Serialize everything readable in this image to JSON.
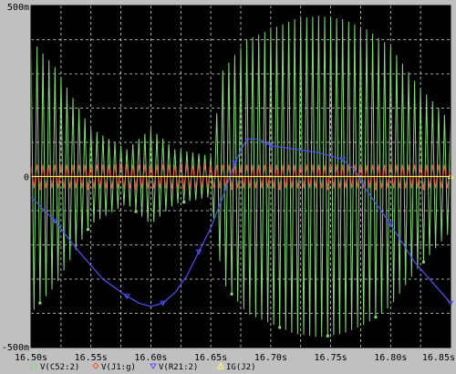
{
  "chart_data": {
    "type": "line",
    "xlim": [
      16.5,
      16.85
    ],
    "ylim": [
      -0.5,
      0.5
    ],
    "x_ticks": [
      16.5,
      16.55,
      16.6,
      16.65,
      16.7,
      16.75,
      16.8,
      16.85
    ],
    "x_tick_labels": [
      "16.50s",
      "16.55s",
      "16.60s",
      "16.65s",
      "16.70s",
      "16.75s",
      "16.80s",
      "16.85s"
    ],
    "y_ticks": [
      0.5,
      0,
      -0.5
    ],
    "y_tick_labels": [
      "500m",
      "0",
      "-500m"
    ],
    "grid": true,
    "legend_position": "bottom",
    "background": "#000000",
    "series": [
      {
        "name": "V(C52:2)",
        "color": "#7fdc6e",
        "marker": "square",
        "style": "carrier",
        "carrier_freq": 200,
        "envelope_x": [
          16.5,
          16.52,
          16.55,
          16.58,
          16.6,
          16.62,
          16.65,
          16.66,
          16.68,
          16.7,
          16.72,
          16.74,
          16.76,
          16.78,
          16.8,
          16.82,
          16.84,
          16.85
        ],
        "envelope": [
          0.4,
          0.32,
          0.14,
          0.08,
          0.14,
          0.08,
          0.06,
          0.31,
          0.4,
          0.43,
          0.46,
          0.47,
          0.46,
          0.43,
          0.38,
          0.28,
          0.2,
          0.16
        ]
      },
      {
        "name": "V(J1:g)",
        "color": "#e8583a",
        "marker": "diamond",
        "style": "carrier",
        "carrier_freq": 200,
        "envelope_x": [
          16.5,
          16.85
        ],
        "envelope": [
          0.035,
          0.035
        ]
      },
      {
        "name": "V(R21:2)",
        "color": "#5050ff",
        "marker": "triangle-down",
        "style": "line",
        "x": [
          16.5,
          16.52,
          16.54,
          16.56,
          16.58,
          16.59,
          16.6,
          16.61,
          16.62,
          16.63,
          16.64,
          16.65,
          16.66,
          16.67,
          16.68,
          16.69,
          16.7,
          16.72,
          16.74,
          16.76,
          16.77,
          16.78,
          16.8,
          16.82,
          16.84,
          16.85
        ],
        "y": [
          -0.06,
          -0.13,
          -0.22,
          -0.3,
          -0.35,
          -0.37,
          -0.38,
          -0.37,
          -0.34,
          -0.29,
          -0.22,
          -0.15,
          -0.06,
          0.04,
          0.11,
          0.11,
          0.09,
          0.08,
          0.07,
          0.05,
          0.02,
          -0.04,
          -0.14,
          -0.25,
          -0.33,
          -0.37
        ]
      },
      {
        "name": "IG(J2)",
        "color": "#ffff66",
        "marker": "triangle-up",
        "style": "line",
        "x": [
          16.5,
          16.85
        ],
        "y": [
          0,
          0
        ]
      }
    ]
  }
}
